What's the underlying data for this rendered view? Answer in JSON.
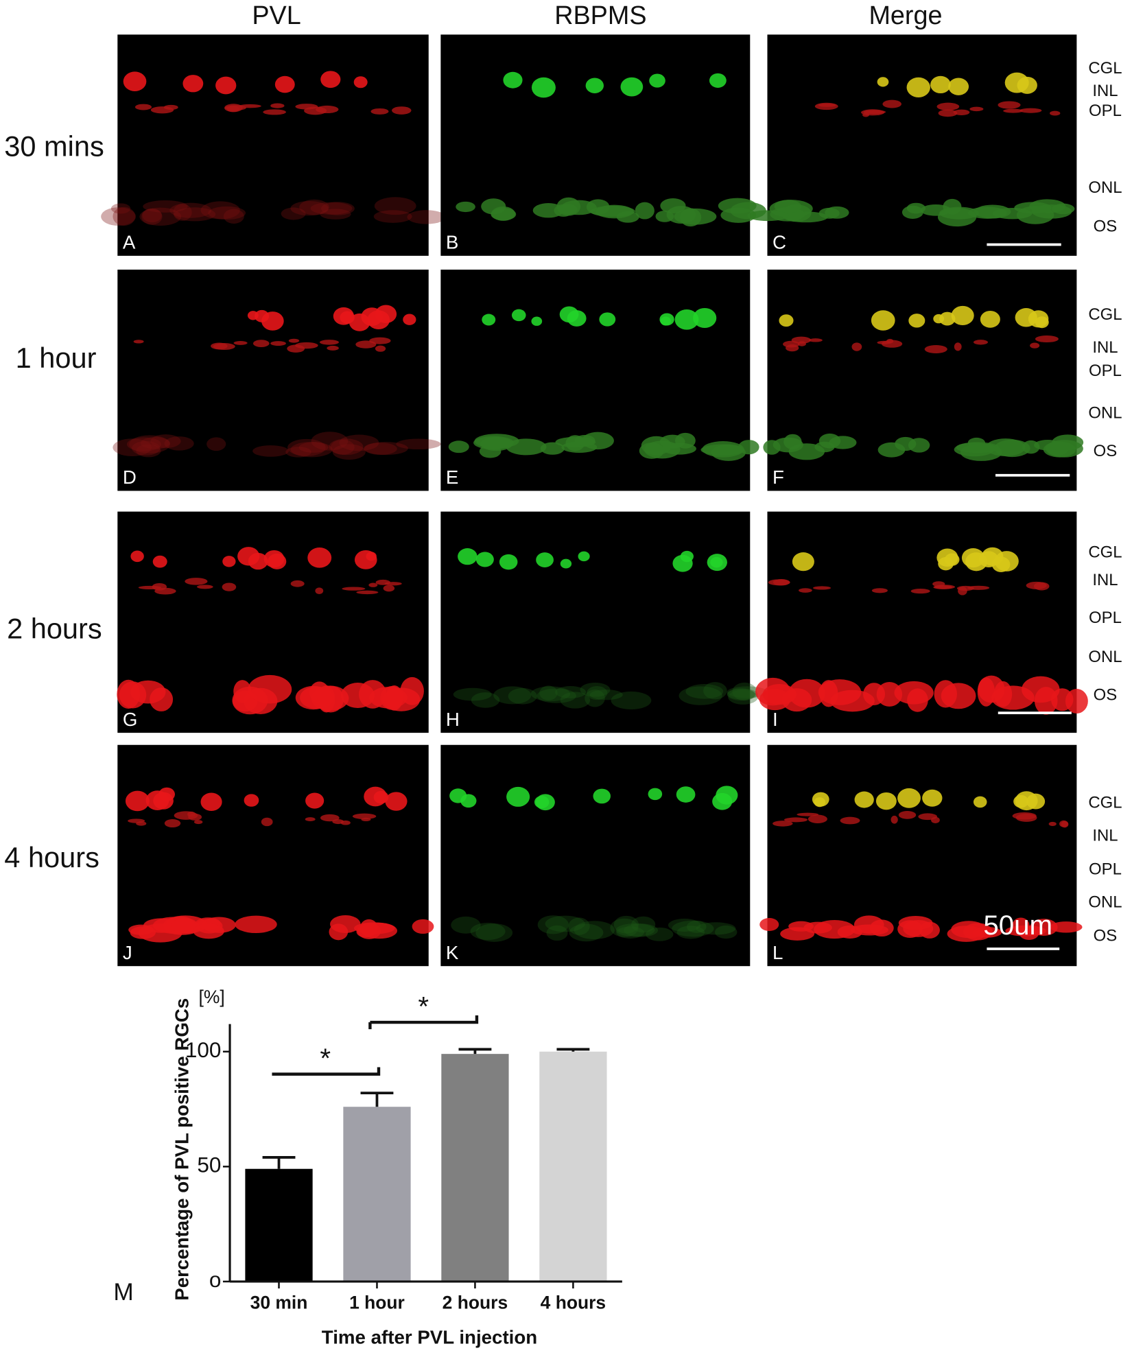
{
  "figure": {
    "column_headers": [
      "PVL",
      "RBPMS",
      "Merge"
    ],
    "rows": [
      {
        "label": "30 mins",
        "panels": [
          "A",
          "B",
          "C"
        ],
        "layers": [
          "CGL",
          "INL",
          "OPL",
          "ONL",
          "OS"
        ]
      },
      {
        "label": "1 hour",
        "panels": [
          "D",
          "E",
          "F"
        ],
        "layers": [
          "CGL",
          "INL",
          "OPL",
          "ONL",
          "OS"
        ]
      },
      {
        "label": "2 hours",
        "panels": [
          "G",
          "H",
          "I"
        ],
        "layers": [
          "CGL",
          "INL",
          "OPL",
          "ONL",
          "OS"
        ]
      },
      {
        "label": "4 hours",
        "panels": [
          "J",
          "K",
          "L"
        ],
        "layers": [
          "CGL",
          "INL",
          "OPL",
          "ONL",
          "OS"
        ]
      }
    ],
    "scale_bar_label": "50um"
  },
  "chart_data": {
    "type": "bar",
    "panel_label": "M",
    "y_label": "Percentage of PVL positive RGCs",
    "y_unit": "[%]",
    "x_label": "Time after PVL injection",
    "categories": [
      "30 min",
      "1 hour",
      "2 hours",
      "4 hours"
    ],
    "values": [
      49,
      76,
      99,
      100
    ],
    "errors": [
      5,
      6,
      2,
      1
    ],
    "colors": [
      "#000000",
      "#a0a0a8",
      "#808080",
      "#d4d4d4"
    ],
    "ylim": [
      0,
      112
    ],
    "yticks": [
      {
        "value": 0,
        "label": "o"
      },
      50,
      100
    ],
    "significance": [
      {
        "label": "*",
        "between": [
          "30 min",
          "1 hour"
        ]
      },
      {
        "label": "*",
        "between": [
          "1 hour",
          "2 hours"
        ]
      }
    ]
  }
}
